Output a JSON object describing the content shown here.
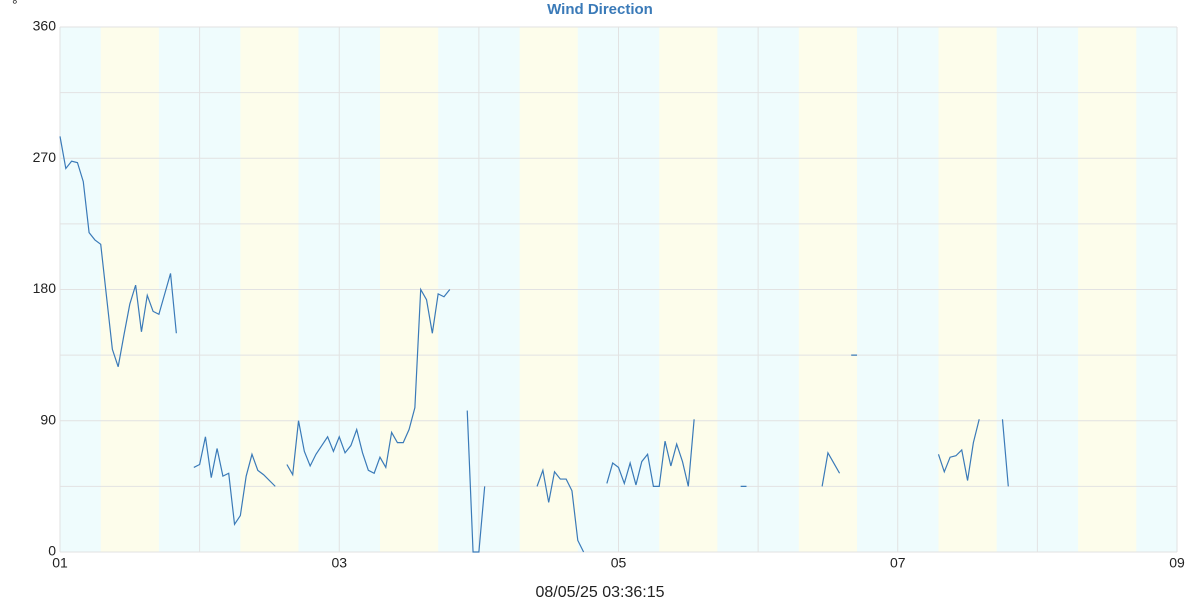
{
  "chart_data": {
    "type": "line",
    "title": "Wind Direction",
    "y_unit": "°",
    "footer": "08/05/25 03:36:15",
    "xlim": [
      0,
      192
    ],
    "xticks": [
      {
        "value": 0,
        "label": "01"
      },
      {
        "value": 48,
        "label": "03"
      },
      {
        "value": 96,
        "label": "05"
      },
      {
        "value": 144,
        "label": "07"
      },
      {
        "value": 192,
        "label": "09"
      }
    ],
    "x_grid": [
      24,
      72,
      120,
      168
    ],
    "ylim": [
      0,
      360
    ],
    "yticks": [
      0,
      90,
      180,
      270,
      360
    ],
    "y_grid": [
      45,
      135,
      225,
      315
    ],
    "background_color": "#effcfd",
    "shaded_color": "#fdfdeb",
    "shaded_ranges": [
      [
        7,
        17
      ],
      [
        31,
        41
      ],
      [
        55,
        65
      ],
      [
        79,
        89
      ],
      [
        103,
        113
      ],
      [
        127,
        137
      ],
      [
        151,
        161
      ],
      [
        175,
        185
      ]
    ],
    "series": [
      {
        "name": "Wind Direction",
        "color": "#3a7ab8",
        "x": [
          0,
          1,
          2,
          3,
          4,
          5,
          6,
          7,
          8,
          9,
          10,
          11,
          12,
          13,
          14,
          15,
          16,
          17,
          18,
          19,
          20,
          21,
          23,
          24,
          25,
          26,
          27,
          28,
          29,
          30,
          31,
          32,
          33,
          34,
          35,
          37,
          38,
          39,
          40,
          41,
          42,
          43,
          44,
          45,
          46,
          47,
          48,
          49,
          50,
          51,
          52,
          53,
          54,
          55,
          56,
          57,
          58,
          59,
          60,
          61,
          62,
          63,
          64,
          65,
          66,
          67,
          68,
          70,
          71,
          72,
          73,
          74,
          82,
          83,
          84,
          85,
          86,
          87,
          88,
          89,
          90,
          91,
          94,
          95,
          96,
          97,
          98,
          99,
          100,
          101,
          102,
          103,
          104,
          105,
          106,
          107,
          108,
          109,
          110,
          117,
          118,
          119,
          131,
          132,
          133,
          134,
          135,
          136,
          137,
          138,
          151,
          152,
          153,
          154,
          155,
          156,
          157,
          158,
          159,
          162,
          163
        ],
        "values": [
          285,
          263,
          268,
          267,
          254,
          219,
          214,
          211,
          175,
          139,
          127,
          149,
          170,
          183,
          151,
          176,
          165,
          163,
          177,
          191,
          150,
          null,
          58,
          60,
          79,
          51,
          71,
          52,
          54,
          19,
          25,
          52,
          67,
          56,
          53,
          45,
          null,
          60,
          53,
          90,
          69,
          59,
          67,
          73,
          79,
          69,
          79,
          68,
          73,
          84,
          68,
          56,
          54,
          65,
          58,
          82,
          75,
          75,
          84,
          99,
          180,
          173,
          150,
          177,
          175,
          180,
          null,
          97,
          0,
          0,
          45,
          null,
          45,
          56,
          34,
          55,
          50,
          50,
          42,
          8,
          0,
          null,
          47,
          61,
          58,
          47,
          61,
          46,
          62,
          67,
          45,
          45,
          76,
          59,
          74,
          62,
          45,
          91,
          null,
          45,
          45,
          null,
          45,
          68,
          61,
          54,
          null,
          135,
          135,
          null,
          67,
          55,
          65,
          66,
          70,
          49,
          75,
          91,
          null,
          91,
          45
        ]
      }
    ]
  }
}
